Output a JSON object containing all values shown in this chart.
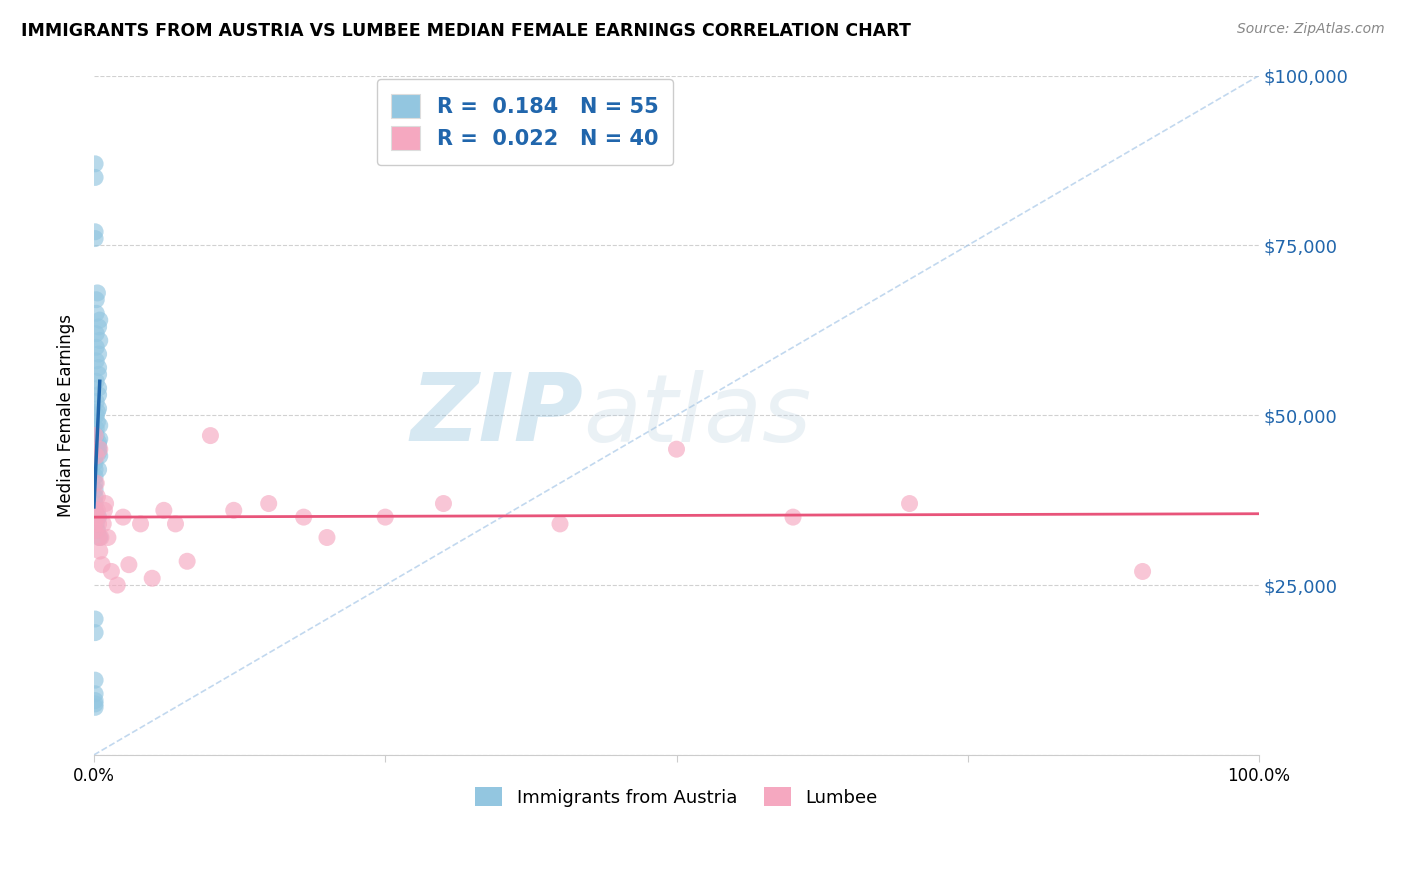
{
  "title": "IMMIGRANTS FROM AUSTRIA VS LUMBEE MEDIAN FEMALE EARNINGS CORRELATION CHART",
  "source": "Source: ZipAtlas.com",
  "ylabel": "Median Female Earnings",
  "xlim": [
    0,
    1.0
  ],
  "ylim": [
    0,
    100000
  ],
  "blue_color": "#93c6e0",
  "pink_color": "#f5a8c0",
  "blue_line_color": "#2166ac",
  "pink_line_color": "#e8547a",
  "dash_line_color": "#a8c8e8",
  "right_ytick_color": "#2166ac",
  "legend_r1_text": "R =  0.184   N = 55",
  "legend_r2_text": "R =  0.022   N = 40",
  "legend_label1": "Immigrants from Austria",
  "legend_label2": "Lumbee",
  "austria_x": [
    0.001,
    0.001,
    0.001,
    0.001,
    0.001,
    0.001,
    0.001,
    0.001,
    0.001,
    0.001,
    0.001,
    0.001,
    0.001,
    0.001,
    0.001,
    0.001,
    0.001,
    0.001,
    0.001,
    0.001,
    0.001,
    0.002,
    0.002,
    0.002,
    0.002,
    0.002,
    0.002,
    0.002,
    0.002,
    0.002,
    0.002,
    0.002,
    0.003,
    0.003,
    0.003,
    0.003,
    0.004,
    0.004,
    0.004,
    0.004,
    0.004,
    0.004,
    0.004,
    0.004,
    0.004,
    0.004,
    0.004,
    0.004,
    0.004,
    0.005,
    0.005,
    0.005,
    0.005,
    0.005,
    0.005
  ],
  "austria_y": [
    87000,
    85000,
    77000,
    76000,
    20000,
    18000,
    11000,
    9000,
    8000,
    7500,
    7000,
    45000,
    44000,
    43000,
    42000,
    41000,
    40000,
    39000,
    38000,
    37000,
    36000,
    67000,
    65000,
    62000,
    60000,
    58000,
    55000,
    52000,
    50000,
    48000,
    47000,
    34000,
    68000,
    50500,
    49000,
    33000,
    63000,
    59000,
    57000,
    56000,
    54000,
    53000,
    51000,
    46000,
    45500,
    45000,
    44500,
    42000,
    35000,
    64000,
    61000,
    48500,
    46500,
    44000,
    32000
  ],
  "lumbee_x": [
    0.001,
    0.001,
    0.001,
    0.001,
    0.002,
    0.002,
    0.003,
    0.003,
    0.003,
    0.004,
    0.004,
    0.005,
    0.005,
    0.006,
    0.007,
    0.008,
    0.009,
    0.01,
    0.012,
    0.015,
    0.02,
    0.025,
    0.03,
    0.04,
    0.05,
    0.06,
    0.07,
    0.08,
    0.1,
    0.12,
    0.15,
    0.18,
    0.2,
    0.25,
    0.3,
    0.4,
    0.5,
    0.6,
    0.7,
    0.9
  ],
  "lumbee_y": [
    36000,
    34000,
    33000,
    47000,
    44000,
    40000,
    38000,
    36000,
    35000,
    34000,
    32000,
    45000,
    30000,
    32000,
    28000,
    34000,
    36000,
    37000,
    32000,
    27000,
    25000,
    35000,
    28000,
    34000,
    26000,
    36000,
    34000,
    28500,
    47000,
    36000,
    37000,
    35000,
    32000,
    35000,
    37000,
    34000,
    45000,
    35000,
    37000,
    27000
  ],
  "blue_trend_x": [
    0.0,
    0.005
  ],
  "blue_trend_y": [
    36500,
    55000
  ],
  "pink_trend_x": [
    0.0,
    1.0
  ],
  "pink_trend_y": [
    35000,
    35500
  ],
  "dash_line_x": [
    0.0,
    1.0
  ],
  "dash_line_y": [
    0,
    100000
  ]
}
